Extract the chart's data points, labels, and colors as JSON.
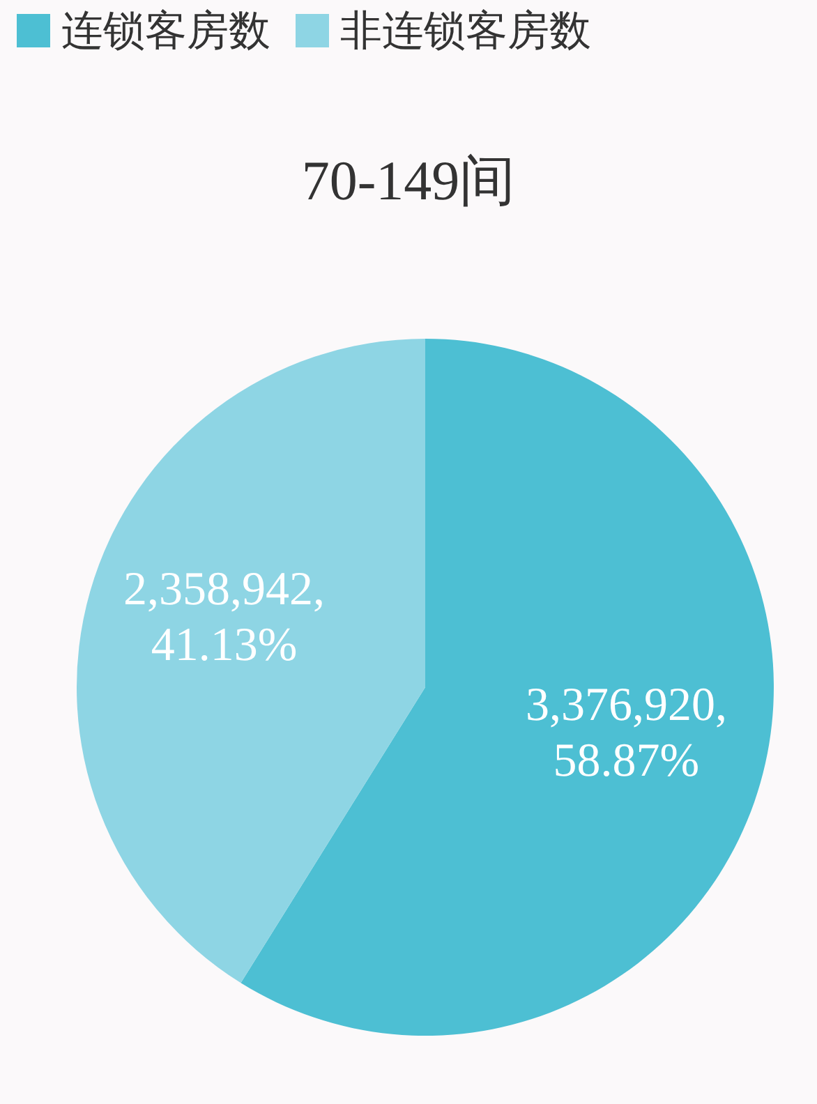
{
  "chart_data": {
    "type": "pie",
    "title": "70-149间",
    "categories": [
      "连锁客房数",
      "非连锁客房数"
    ],
    "values": [
      3376920,
      2358942
    ],
    "colors": [
      "#4dbfd3",
      "#8ed5e4"
    ],
    "value_labels": [
      "3,376,920,\n58.87%",
      "2,358,942,\n41.13%"
    ],
    "legend": "top"
  }
}
